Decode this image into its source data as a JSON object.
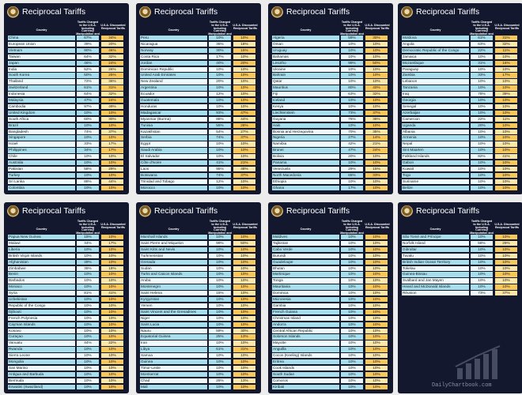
{
  "colors": {
    "board_bg": "#13182f",
    "country_a": "#a6dfeb",
    "country_b": "#eef9fb",
    "reciprocal_a": "#f6c85b",
    "reciprocal_b": "#fbe7a8"
  },
  "icons": [
    "presidential-seal-icon",
    "bar-chart-watermark-icon"
  ],
  "watermark": "DailyChartbook.com",
  "chart_data": [
    {
      "type": "table",
      "title": "Reciprocal Tariffs",
      "columns": [
        "Country",
        "Tariffs Charged to the U.S.A. Including Currency Manipulation and Trade Barriers",
        "U.S.A. Discounted Reciprocal Tariffs"
      ],
      "rows": [
        [
          "China",
          "67%",
          "34%"
        ],
        [
          "European Union",
          "39%",
          "20%"
        ],
        [
          "Vietnam",
          "90%",
          "46%"
        ],
        [
          "Taiwan",
          "64%",
          "32%"
        ],
        [
          "Japan",
          "46%",
          "24%"
        ],
        [
          "India",
          "52%",
          "26%"
        ],
        [
          "South Korea",
          "50%",
          "25%"
        ],
        [
          "Thailand",
          "72%",
          "36%"
        ],
        [
          "Switzerland",
          "61%",
          "31%"
        ],
        [
          "Indonesia",
          "64%",
          "32%"
        ],
        [
          "Malaysia",
          "47%",
          "24%"
        ],
        [
          "Cambodia",
          "97%",
          "49%"
        ],
        [
          "United Kingdom",
          "10%",
          "10%"
        ],
        [
          "South Africa",
          "60%",
          "30%"
        ],
        [
          "Brazil",
          "10%",
          "10%"
        ],
        [
          "Bangladesh",
          "74%",
          "37%"
        ],
        [
          "Singapore",
          "10%",
          "10%"
        ],
        [
          "Israel",
          "33%",
          "17%"
        ],
        [
          "Philippines",
          "34%",
          "17%"
        ],
        [
          "Chile",
          "10%",
          "10%"
        ],
        [
          "Australia",
          "10%",
          "10%"
        ],
        [
          "Pakistan",
          "58%",
          "29%"
        ],
        [
          "Turkey",
          "10%",
          "10%"
        ],
        [
          "Sri Lanka",
          "88%",
          "44%"
        ],
        [
          "Colombia",
          "10%",
          "10%"
        ]
      ]
    },
    {
      "type": "table",
      "title": "Reciprocal Tariffs",
      "columns": [
        "Country",
        "Tariffs Charged to the U.S.A. Including Currency Manipulation and Trade Barriers",
        "U.S.A. Discounted Reciprocal Tariffs"
      ],
      "rows": [
        [
          "Peru",
          "10%",
          "10%"
        ],
        [
          "Nicaragua",
          "36%",
          "18%"
        ],
        [
          "Norway",
          "30%",
          "15%"
        ],
        [
          "Costa Rica",
          "17%",
          "10%"
        ],
        [
          "Jordan",
          "40%",
          "20%"
        ],
        [
          "Dominican Republic",
          "10%",
          "10%"
        ],
        [
          "United Arab Emirates",
          "10%",
          "10%"
        ],
        [
          "New Zealand",
          "20%",
          "10%"
        ],
        [
          "Argentina",
          "10%",
          "10%"
        ],
        [
          "Ecuador",
          "12%",
          "10%"
        ],
        [
          "Guatemala",
          "10%",
          "10%"
        ],
        [
          "Honduras",
          "10%",
          "10%"
        ],
        [
          "Madagascar",
          "93%",
          "47%"
        ],
        [
          "Myanmar (Burma)",
          "88%",
          "44%"
        ],
        [
          "Tunisia",
          "55%",
          "28%"
        ],
        [
          "Kazakhstan",
          "54%",
          "27%"
        ],
        [
          "Serbia",
          "74%",
          "37%"
        ],
        [
          "Egypt",
          "10%",
          "10%"
        ],
        [
          "Saudi Arabia",
          "10%",
          "10%"
        ],
        [
          "El Salvador",
          "10%",
          "10%"
        ],
        [
          "Côte d'Ivoire",
          "41%",
          "21%"
        ],
        [
          "Laos",
          "95%",
          "48%"
        ],
        [
          "Botswana",
          "74%",
          "37%"
        ],
        [
          "Trinidad and Tobago",
          "12%",
          "10%"
        ],
        [
          "Morocco",
          "10%",
          "10%"
        ]
      ]
    },
    {
      "type": "table",
      "title": "Reciprocal Tariffs",
      "columns": [
        "Country",
        "Tariffs Charged to the U.S.A. Including Currency Manipulation and Trade Barriers",
        "U.S.A. Discounted Reciprocal Tariffs"
      ],
      "rows": [
        [
          "Algeria",
          "59%",
          "30%"
        ],
        [
          "Oman",
          "10%",
          "10%"
        ],
        [
          "Uruguay",
          "10%",
          "10%"
        ],
        [
          "Bahamas",
          "10%",
          "10%"
        ],
        [
          "Lesotho",
          "99%",
          "50%"
        ],
        [
          "Ukraine",
          "10%",
          "10%"
        ],
        [
          "Bahrain",
          "10%",
          "10%"
        ],
        [
          "Qatar",
          "10%",
          "10%"
        ],
        [
          "Mauritius",
          "80%",
          "40%"
        ],
        [
          "Fiji",
          "63%",
          "32%"
        ],
        [
          "Iceland",
          "10%",
          "10%"
        ],
        [
          "Kenya",
          "10%",
          "10%"
        ],
        [
          "Liechtenstein",
          "73%",
          "37%"
        ],
        [
          "Guyana",
          "76%",
          "38%"
        ],
        [
          "Haiti",
          "10%",
          "10%"
        ],
        [
          "Bosnia and Herzegovina",
          "70%",
          "35%"
        ],
        [
          "Nigeria",
          "27%",
          "14%"
        ],
        [
          "Namibia",
          "42%",
          "21%"
        ],
        [
          "Brunei",
          "47%",
          "24%"
        ],
        [
          "Bolivia",
          "20%",
          "10%"
        ],
        [
          "Panama",
          "10%",
          "10%"
        ],
        [
          "Venezuela",
          "29%",
          "15%"
        ],
        [
          "North Macedonia",
          "65%",
          "33%"
        ],
        [
          "Ethiopia",
          "10%",
          "10%"
        ],
        [
          "Ghana",
          "17%",
          "10%"
        ]
      ]
    },
    {
      "type": "table",
      "title": "Reciprocal Tariffs",
      "columns": [
        "Country",
        "Tariffs Charged to the U.S.A. Including Currency Manipulation and Trade Barriers",
        "U.S.A. Discounted Reciprocal Tariffs"
      ],
      "rows": [
        [
          "Moldova",
          "61%",
          "31%"
        ],
        [
          "Angola",
          "63%",
          "32%"
        ],
        [
          "Democratic Republic of the Congo",
          "22%",
          "11%"
        ],
        [
          "Jamaica",
          "10%",
          "10%"
        ],
        [
          "Mozambique",
          "31%",
          "16%"
        ],
        [
          "Paraguay",
          "10%",
          "10%"
        ],
        [
          "Zambia",
          "33%",
          "17%"
        ],
        [
          "Lebanon",
          "10%",
          "10%"
        ],
        [
          "Tanzania",
          "10%",
          "10%"
        ],
        [
          "Iraq",
          "78%",
          "39%"
        ],
        [
          "Georgia",
          "10%",
          "10%"
        ],
        [
          "Senegal",
          "10%",
          "10%"
        ],
        [
          "Azerbaijan",
          "10%",
          "10%"
        ],
        [
          "Cameroon",
          "22%",
          "11%"
        ],
        [
          "Uganda",
          "20%",
          "10%"
        ],
        [
          "Albania",
          "10%",
          "10%"
        ],
        [
          "Armenia",
          "10%",
          "10%"
        ],
        [
          "Nepal",
          "10%",
          "10%"
        ],
        [
          "Sint Maarten",
          "10%",
          "10%"
        ],
        [
          "Falkland Islands",
          "82%",
          "41%"
        ],
        [
          "Gabon",
          "10%",
          "10%"
        ],
        [
          "Kuwait",
          "10%",
          "10%"
        ],
        [
          "Togo",
          "10%",
          "10%"
        ],
        [
          "Suriname",
          "10%",
          "10%"
        ],
        [
          "Belize",
          "10%",
          "10%"
        ]
      ]
    },
    {
      "type": "table",
      "title": "Reciprocal Tariffs",
      "columns": [
        "Country",
        "Tariffs Charged to the U.S.A. Including Currency Manipulation and Trade Barriers",
        "U.S.A. Discounted Reciprocal Tariffs"
      ],
      "rows": [
        [
          "Papua New Guinea",
          "15%",
          "10%"
        ],
        [
          "Malawi",
          "34%",
          "17%"
        ],
        [
          "Liberia",
          "10%",
          "10%"
        ],
        [
          "British Virgin Islands",
          "10%",
          "10%"
        ],
        [
          "Afghanistan",
          "49%",
          "10%"
        ],
        [
          "Zimbabwe",
          "35%",
          "18%"
        ],
        [
          "Benin",
          "10%",
          "10%"
        ],
        [
          "Barbados",
          "10%",
          "10%"
        ],
        [
          "Monaco",
          "10%",
          "10%"
        ],
        [
          "Syria",
          "81%",
          "41%"
        ],
        [
          "Uzbekistan",
          "10%",
          "10%"
        ],
        [
          "Republic of the Congo",
          "10%",
          "10%"
        ],
        [
          "Djibouti",
          "10%",
          "10%"
        ],
        [
          "French Polynesia",
          "10%",
          "10%"
        ],
        [
          "Cayman Islands",
          "10%",
          "10%"
        ],
        [
          "Kosovo",
          "10%",
          "10%"
        ],
        [
          "Curaçao",
          "10%",
          "10%"
        ],
        [
          "Vanuatu",
          "44%",
          "22%"
        ],
        [
          "Rwanda",
          "10%",
          "10%"
        ],
        [
          "Sierra Leone",
          "10%",
          "10%"
        ],
        [
          "Mongolia",
          "10%",
          "10%"
        ],
        [
          "San Marino",
          "10%",
          "10%"
        ],
        [
          "Antigua and Barbuda",
          "10%",
          "10%"
        ],
        [
          "Bermuda",
          "10%",
          "10%"
        ],
        [
          "Eswatini (Swaziland)",
          "10%",
          "10%"
        ]
      ]
    },
    {
      "type": "table",
      "title": "Reciprocal Tariffs",
      "columns": [
        "Country",
        "Tariffs Charged to the U.S.A. Including Currency Manipulation and Trade Barriers",
        "U.S.A. Discounted Reciprocal Tariffs"
      ],
      "rows": [
        [
          "Marshall Islands",
          "10%",
          "10%"
        ],
        [
          "Saint Pierre and Miquelon",
          "99%",
          "50%"
        ],
        [
          "Saint Kitts and Nevis",
          "10%",
          "10%"
        ],
        [
          "Turkmenistan",
          "10%",
          "10%"
        ],
        [
          "Grenada",
          "10%",
          "10%"
        ],
        [
          "Sudan",
          "10%",
          "10%"
        ],
        [
          "Turks and Caicos Islands",
          "10%",
          "10%"
        ],
        [
          "Aruba",
          "10%",
          "10%"
        ],
        [
          "Montenegro",
          "10%",
          "10%"
        ],
        [
          "Saint Helena",
          "15%",
          "10%"
        ],
        [
          "Kyrgyzstan",
          "10%",
          "10%"
        ],
        [
          "Yemen",
          "10%",
          "10%"
        ],
        [
          "Saint Vincent and the Grenadines",
          "10%",
          "10%"
        ],
        [
          "Niger",
          "10%",
          "10%"
        ],
        [
          "Saint Lucia",
          "10%",
          "10%"
        ],
        [
          "Nauru",
          "59%",
          "30%"
        ],
        [
          "Equatorial Guinea",
          "25%",
          "13%"
        ],
        [
          "Iran",
          "10%",
          "10%"
        ],
        [
          "Libya",
          "61%",
          "31%"
        ],
        [
          "Samoa",
          "10%",
          "10%"
        ],
        [
          "Guinea",
          "10%",
          "10%"
        ],
        [
          "Timor-Leste",
          "10%",
          "10%"
        ],
        [
          "Montserrat",
          "10%",
          "10%"
        ],
        [
          "Chad",
          "26%",
          "13%"
        ],
        [
          "Mali",
          "10%",
          "10%"
        ]
      ]
    },
    {
      "type": "table",
      "title": "Reciprocal Tariffs",
      "columns": [
        "Country",
        "Tariffs Charged to the U.S.A. Including Currency Manipulation and Trade Barriers",
        "U.S.A. Discounted Reciprocal Tariffs"
      ],
      "rows": [
        [
          "Maldives",
          "10%",
          "10%"
        ],
        [
          "Tajikistan",
          "10%",
          "10%"
        ],
        [
          "Cabo Verde",
          "10%",
          "10%"
        ],
        [
          "Burundi",
          "10%",
          "10%"
        ],
        [
          "Guadeloupe",
          "10%",
          "10%"
        ],
        [
          "Bhutan",
          "10%",
          "10%"
        ],
        [
          "Martinique",
          "10%",
          "10%"
        ],
        [
          "Tonga",
          "10%",
          "10%"
        ],
        [
          "Mauritania",
          "10%",
          "10%"
        ],
        [
          "Dominica",
          "10%",
          "10%"
        ],
        [
          "Micronesia",
          "10%",
          "10%"
        ],
        [
          "Gambia",
          "10%",
          "10%"
        ],
        [
          "French Guiana",
          "10%",
          "10%"
        ],
        [
          "Christmas Island",
          "10%",
          "10%"
        ],
        [
          "Andorra",
          "10%",
          "10%"
        ],
        [
          "Central African Republic",
          "10%",
          "10%"
        ],
        [
          "Solomon Islands",
          "10%",
          "10%"
        ],
        [
          "Mayotte",
          "10%",
          "10%"
        ],
        [
          "Anguilla",
          "10%",
          "10%"
        ],
        [
          "Cocos (Keeling) Islands",
          "10%",
          "10%"
        ],
        [
          "Eritrea",
          "10%",
          "10%"
        ],
        [
          "Cook Islands",
          "10%",
          "10%"
        ],
        [
          "South Sudan",
          "10%",
          "10%"
        ],
        [
          "Comoros",
          "10%",
          "10%"
        ],
        [
          "Kiribati",
          "10%",
          "10%"
        ]
      ]
    },
    {
      "type": "table",
      "title": "Reciprocal Tariffs",
      "columns": [
        "Country",
        "Tariffs Charged to the U.S.A. Including Currency Manipulation and Trade Barriers",
        "U.S.A. Discounted Reciprocal Tariffs"
      ],
      "rows": [
        [
          "São Tomé and Príncipe",
          "10%",
          "10%"
        ],
        [
          "Norfolk Island",
          "58%",
          "29%"
        ],
        [
          "Gibraltar",
          "10%",
          "10%"
        ],
        [
          "Tuvalu",
          "10%",
          "10%"
        ],
        [
          "British Indian Ocean Territory",
          "10%",
          "10%"
        ],
        [
          "Tokelau",
          "10%",
          "10%"
        ],
        [
          "Guinea-Bissau",
          "10%",
          "10%"
        ],
        [
          "Svalbard and Jan Mayen",
          "10%",
          "10%"
        ],
        [
          "Heard and McDonald Islands",
          "10%",
          "10%"
        ],
        [
          "Réunion",
          "73%",
          "37%"
        ]
      ]
    }
  ]
}
